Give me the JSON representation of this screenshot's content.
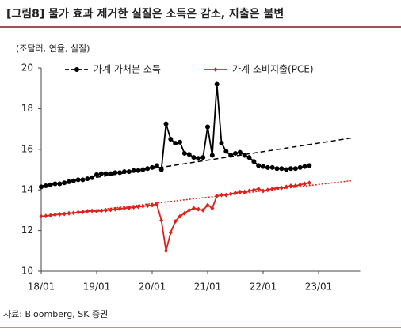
{
  "header": {
    "title": "[그림8] 물가 효과 제거한 실질은 소득은 감소, 지출은 불변"
  },
  "chart_data": {
    "type": "line",
    "unit_label": "(조달러, 연율, 실질)",
    "x": [
      0,
      1,
      2,
      3,
      4,
      5,
      6,
      7,
      8,
      9,
      10,
      11,
      12,
      13,
      14,
      15,
      16,
      17,
      18,
      19,
      20,
      21,
      22,
      23,
      24,
      25,
      26,
      27,
      28,
      29,
      30,
      31,
      32,
      33,
      34,
      35,
      36,
      37,
      38,
      39,
      40,
      41,
      42,
      43,
      44,
      45,
      46,
      47,
      48,
      49,
      50,
      51,
      52,
      53,
      54,
      55,
      56,
      57,
      58
    ],
    "xlim": [
      0,
      69
    ],
    "xticks": [
      {
        "value": 0,
        "label": "18/01"
      },
      {
        "value": 12,
        "label": "19/01"
      },
      {
        "value": 24,
        "label": "20/01"
      },
      {
        "value": 36,
        "label": "21/01"
      },
      {
        "value": 48,
        "label": "22/01"
      },
      {
        "value": 60,
        "label": "23/01"
      }
    ],
    "ylim": [
      10,
      20
    ],
    "yticks": [
      10,
      12,
      14,
      16,
      18,
      20
    ],
    "series": [
      {
        "name": "가계 가처분 소득",
        "color": "#000000",
        "marker": "circle",
        "values": [
          14.15,
          14.2,
          14.25,
          14.3,
          14.3,
          14.35,
          14.4,
          14.45,
          14.5,
          14.5,
          14.55,
          14.6,
          14.75,
          14.8,
          14.8,
          14.8,
          14.85,
          14.85,
          14.9,
          14.9,
          14.95,
          14.95,
          15.0,
          15.05,
          15.1,
          15.2,
          15.0,
          17.25,
          16.5,
          16.3,
          16.35,
          15.8,
          15.75,
          15.6,
          15.55,
          15.6,
          17.1,
          15.7,
          19.2,
          16.3,
          15.9,
          15.7,
          15.8,
          15.85,
          15.7,
          15.6,
          15.4,
          15.2,
          15.15,
          15.1,
          15.1,
          15.05,
          15.05,
          15.0,
          15.05,
          15.05,
          15.1,
          15.15,
          15.2
        ]
      },
      {
        "name": "가계 소비지출(PCE)",
        "color": "#e0201b",
        "marker": "diamond",
        "values": [
          12.7,
          12.72,
          12.75,
          12.78,
          12.8,
          12.82,
          12.85,
          12.87,
          12.9,
          12.92,
          12.95,
          12.97,
          12.95,
          12.97,
          13.0,
          13.02,
          13.05,
          13.07,
          13.1,
          13.12,
          13.15,
          13.17,
          13.2,
          13.22,
          13.25,
          13.3,
          12.5,
          11.0,
          11.9,
          12.45,
          12.7,
          12.85,
          13.0,
          13.1,
          13.05,
          13.0,
          13.25,
          13.1,
          13.7,
          13.75,
          13.75,
          13.8,
          13.85,
          13.9,
          13.9,
          13.95,
          14.0,
          14.05,
          13.95,
          14.0,
          14.05,
          14.1,
          14.1,
          14.15,
          14.2,
          14.2,
          14.25,
          14.3,
          14.35
        ]
      }
    ],
    "trend_lines": [
      {
        "x": [
          0,
          67
        ],
        "values": [
          14.2,
          16.55
        ],
        "color": "#000000",
        "dash": "6 4"
      },
      {
        "x": [
          0,
          67
        ],
        "values": [
          12.7,
          14.45
        ],
        "color": "#e0201b",
        "dash": "2 2"
      }
    ],
    "source": "자료: Bloomberg, SK 증권"
  }
}
